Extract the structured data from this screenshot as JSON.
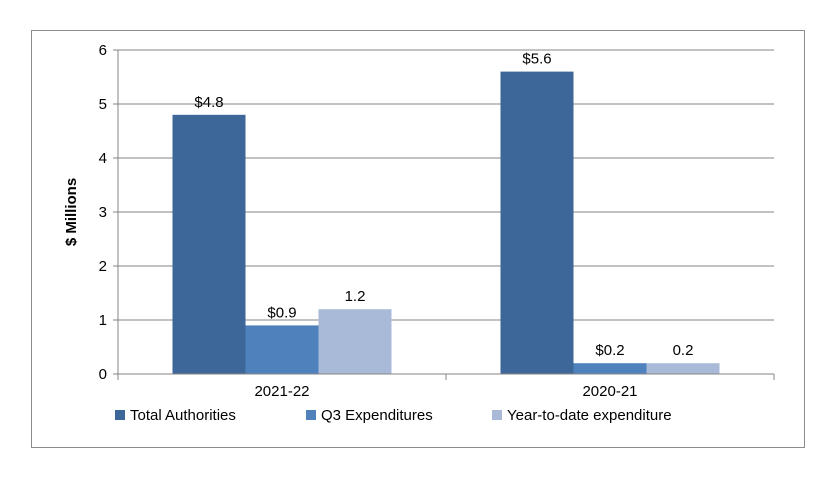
{
  "chart_data": {
    "type": "bar",
    "title": "",
    "xlabel": "",
    "ylabel": "$ Millions",
    "ylim": [
      0,
      6
    ],
    "yticks": [
      "0",
      "1",
      "2",
      "3",
      "4",
      "5",
      "6"
    ],
    "grid": true,
    "legend_position": "bottom",
    "categories": [
      "2021-22",
      "2020-21"
    ],
    "series": [
      {
        "name": "Total Authorities",
        "values": [
          4.8,
          5.6
        ],
        "labels": [
          "$4.8",
          "$5.6"
        ],
        "color": "#3d6699"
      },
      {
        "name": "Q3 Expenditures",
        "values": [
          0.9,
          0.2
        ],
        "labels": [
          "$0.9",
          "$0.2"
        ],
        "color": "#4f81bd"
      },
      {
        "name": "Year-to-date expenditure",
        "values": [
          1.2,
          0.2
        ],
        "labels": [
          "1.2",
          "0.2"
        ],
        "color": "#a9bad9"
      }
    ]
  }
}
